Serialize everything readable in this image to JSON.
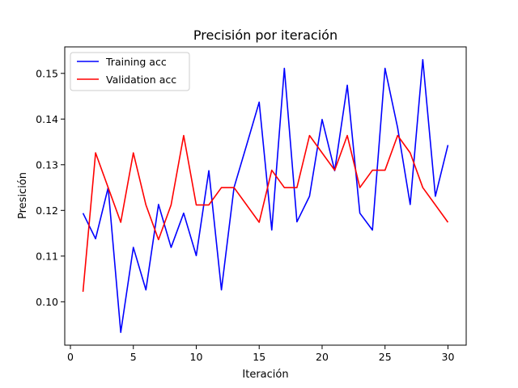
{
  "chart_data": {
    "type": "line",
    "title": "Precisión por iteración",
    "xlabel": "Iteración",
    "ylabel": "Presición",
    "xlim": [
      -0.45,
      31.45
    ],
    "ylim": [
      0.0905,
      0.1558
    ],
    "xticks": [
      0,
      5,
      10,
      15,
      20,
      25,
      30
    ],
    "yticks": [
      0.1,
      0.11,
      0.12,
      0.13,
      0.14,
      0.15
    ],
    "ytick_labels": [
      "0.10",
      "0.11",
      "0.12",
      "0.13",
      "0.14",
      "0.15"
    ],
    "grid": false,
    "legend_position": "top-left",
    "x": [
      1,
      2,
      3,
      4,
      5,
      6,
      7,
      8,
      9,
      10,
      11,
      12,
      13,
      14,
      15,
      16,
      17,
      18,
      19,
      20,
      21,
      22,
      23,
      24,
      25,
      26,
      27,
      28,
      29,
      30
    ],
    "series": [
      {
        "name": "Training acc",
        "color": "#0000ff",
        "values": [
          0.1194,
          0.1138,
          0.125,
          0.0933,
          0.1119,
          0.1026,
          0.1213,
          0.1119,
          0.1194,
          0.1101,
          0.1287,
          0.1026,
          0.125,
          0.1343,
          0.1437,
          0.1157,
          0.1511,
          0.1175,
          0.1231,
          0.1399,
          0.1287,
          0.1474,
          0.1194,
          0.1157,
          0.1511,
          0.1381,
          0.1213,
          0.153,
          0.1231,
          0.1343
        ]
      },
      {
        "name": "Validation acc",
        "color": "#ff0000",
        "values": [
          0.1022,
          0.1326,
          0.125,
          0.1174,
          0.1326,
          0.1212,
          0.1136,
          0.1212,
          0.1364,
          0.1212,
          0.1212,
          0.125,
          0.125,
          0.1212,
          0.1174,
          0.1288,
          0.125,
          0.125,
          0.1364,
          0.1326,
          0.1288,
          0.1364,
          0.125,
          0.1288,
          0.1288,
          0.1364,
          0.1326,
          0.125,
          0.1212,
          0.1174
        ]
      }
    ]
  }
}
